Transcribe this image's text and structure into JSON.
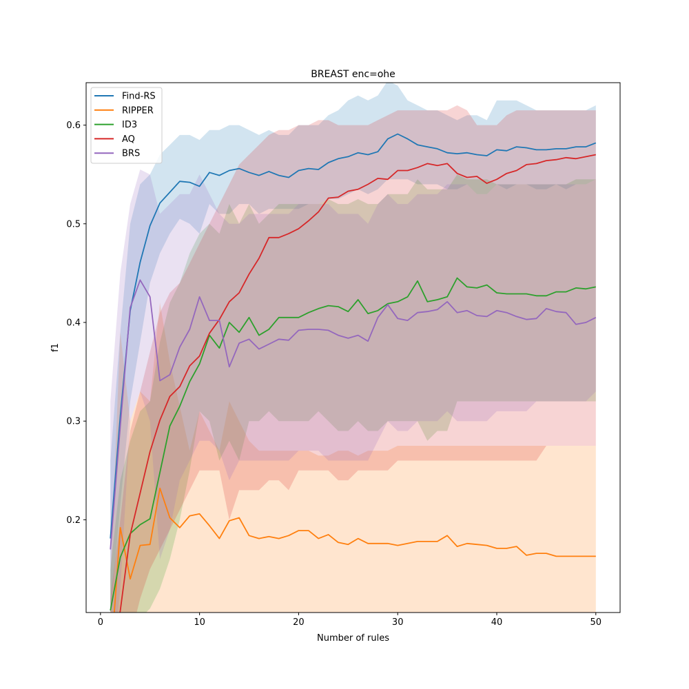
{
  "chart_data": {
    "type": "line",
    "title": "BREAST enc=ohe",
    "xlabel": "Number of rules",
    "ylabel": "f1",
    "xlim": [
      -1.45,
      52.45
    ],
    "ylim": [
      0.106,
      0.643
    ],
    "xticks": [
      0,
      10,
      20,
      30,
      40,
      50
    ],
    "yticks": [
      0.2,
      0.3,
      0.4,
      0.5,
      0.6
    ],
    "xtick_labels": [
      "0",
      "10",
      "20",
      "30",
      "40",
      "50"
    ],
    "ytick_labels": [
      "0.2",
      "0.3",
      "0.4",
      "0.5",
      "0.6"
    ],
    "grid": false,
    "legend_position": "top-left",
    "series": [
      {
        "name": "Find-RS",
        "color": "#1f77b4",
        "x": [
          1,
          2,
          3,
          4,
          5,
          6,
          7,
          8,
          9,
          10,
          11,
          12,
          13,
          14,
          15,
          16,
          17,
          18,
          19,
          20,
          21,
          22,
          23,
          24,
          25,
          26,
          27,
          28,
          29,
          30,
          31,
          32,
          33,
          34,
          35,
          36,
          37,
          38,
          39,
          40,
          41,
          42,
          43,
          44,
          45,
          46,
          47,
          48,
          49,
          50
        ],
        "y": [
          0.181,
          0.305,
          0.412,
          0.461,
          0.498,
          0.521,
          0.532,
          0.543,
          0.542,
          0.538,
          0.552,
          0.549,
          0.554,
          0.556,
          0.552,
          0.549,
          0.553,
          0.549,
          0.547,
          0.554,
          0.556,
          0.555,
          0.562,
          0.566,
          0.568,
          0.572,
          0.57,
          0.573,
          0.586,
          0.591,
          0.586,
          0.58,
          0.578,
          0.576,
          0.572,
          0.571,
          0.572,
          0.57,
          0.569,
          0.575,
          0.574,
          0.578,
          0.577,
          0.575,
          0.575,
          0.576,
          0.576,
          0.578,
          0.578,
          0.582
        ],
        "lower": [
          0.105,
          0.215,
          0.32,
          0.38,
          0.44,
          0.47,
          0.49,
          0.505,
          0.5,
          0.49,
          0.52,
          0.51,
          0.51,
          0.52,
          0.52,
          0.51,
          0.515,
          0.515,
          0.515,
          0.515,
          0.52,
          0.52,
          0.525,
          0.525,
          0.53,
          0.535,
          0.53,
          0.535,
          0.545,
          0.545,
          0.545,
          0.54,
          0.54,
          0.54,
          0.535,
          0.535,
          0.54,
          0.53,
          0.53,
          0.54,
          0.535,
          0.54,
          0.54,
          0.535,
          0.535,
          0.54,
          0.535,
          0.54,
          0.54,
          0.545
        ],
        "upper": [
          0.26,
          0.39,
          0.5,
          0.54,
          0.55,
          0.57,
          0.58,
          0.59,
          0.59,
          0.585,
          0.595,
          0.595,
          0.6,
          0.6,
          0.595,
          0.59,
          0.595,
          0.59,
          0.59,
          0.6,
          0.6,
          0.6,
          0.61,
          0.615,
          0.625,
          0.63,
          0.625,
          0.63,
          0.645,
          0.64,
          0.625,
          0.62,
          0.615,
          0.615,
          0.61,
          0.605,
          0.61,
          0.61,
          0.605,
          0.625,
          0.625,
          0.625,
          0.62,
          0.615,
          0.615,
          0.615,
          0.615,
          0.615,
          0.615,
          0.62
        ]
      },
      {
        "name": "RIPPER",
        "color": "#ff7f0e",
        "x": [
          1,
          2,
          3,
          4,
          5,
          6,
          7,
          8,
          9,
          10,
          11,
          12,
          13,
          14,
          15,
          16,
          17,
          18,
          19,
          20,
          21,
          22,
          23,
          24,
          25,
          26,
          27,
          28,
          29,
          30,
          31,
          32,
          33,
          34,
          35,
          36,
          37,
          38,
          39,
          40,
          41,
          42,
          43,
          44,
          45,
          46,
          47,
          48,
          49,
          50
        ],
        "y": [
          0.05,
          0.192,
          0.14,
          0.174,
          0.175,
          0.232,
          0.202,
          0.192,
          0.204,
          0.206,
          0.194,
          0.181,
          0.199,
          0.202,
          0.184,
          0.181,
          0.183,
          0.181,
          0.184,
          0.189,
          0.189,
          0.181,
          0.185,
          0.177,
          0.175,
          0.181,
          0.176,
          0.176,
          0.176,
          0.174,
          0.176,
          0.178,
          0.178,
          0.178,
          0.184,
          0.173,
          0.176,
          0.175,
          0.174,
          0.171,
          0.171,
          0.173,
          0.164,
          0.166,
          0.166,
          0.163,
          0.163,
          0.163,
          0.163,
          0.163
        ],
        "lower": [
          0.0,
          0.0,
          0.0,
          0.0,
          0.0,
          0.105,
          0.105,
          0.105,
          0.105,
          0.105,
          0.105,
          0.105,
          0.105,
          0.105,
          0.105,
          0.105,
          0.105,
          0.105,
          0.105,
          0.105,
          0.105,
          0.105,
          0.105,
          0.105,
          0.105,
          0.105,
          0.105,
          0.105,
          0.105,
          0.105,
          0.105,
          0.105,
          0.105,
          0.105,
          0.105,
          0.105,
          0.105,
          0.105,
          0.105,
          0.105,
          0.105,
          0.105,
          0.105,
          0.105,
          0.105,
          0.105,
          0.105,
          0.105,
          0.105,
          0.105
        ],
        "upper": [
          0.14,
          0.39,
          0.3,
          0.33,
          0.32,
          0.42,
          0.36,
          0.315,
          0.27,
          0.31,
          0.29,
          0.27,
          0.32,
          0.3,
          0.28,
          0.27,
          0.27,
          0.27,
          0.27,
          0.27,
          0.27,
          0.265,
          0.265,
          0.27,
          0.27,
          0.265,
          0.27,
          0.27,
          0.27,
          0.275,
          0.275,
          0.275,
          0.275,
          0.275,
          0.275,
          0.275,
          0.275,
          0.275,
          0.275,
          0.275,
          0.275,
          0.275,
          0.275,
          0.275,
          0.275,
          0.275,
          0.275,
          0.275,
          0.275,
          0.275
        ]
      },
      {
        "name": "ID3",
        "color": "#2ca02c",
        "x": [
          1,
          2,
          3,
          4,
          5,
          6,
          7,
          8,
          9,
          10,
          11,
          12,
          13,
          14,
          15,
          16,
          17,
          18,
          19,
          20,
          21,
          22,
          23,
          24,
          25,
          26,
          27,
          28,
          29,
          30,
          31,
          32,
          33,
          34,
          35,
          36,
          37,
          38,
          39,
          40,
          41,
          42,
          43,
          44,
          45,
          46,
          47,
          48,
          49,
          50
        ],
        "y": [
          0.108,
          0.162,
          0.186,
          0.195,
          0.201,
          0.248,
          0.295,
          0.315,
          0.34,
          0.358,
          0.387,
          0.374,
          0.4,
          0.39,
          0.405,
          0.387,
          0.393,
          0.405,
          0.405,
          0.405,
          0.41,
          0.414,
          0.417,
          0.416,
          0.411,
          0.423,
          0.409,
          0.412,
          0.419,
          0.421,
          0.426,
          0.442,
          0.421,
          0.423,
          0.426,
          0.445,
          0.436,
          0.435,
          0.438,
          0.43,
          0.429,
          0.429,
          0.429,
          0.427,
          0.427,
          0.431,
          0.431,
          0.435,
          0.434,
          0.436
        ],
        "lower": [
          0.06,
          0.09,
          0.1,
          0.1,
          0.11,
          0.13,
          0.16,
          0.2,
          0.25,
          0.31,
          0.3,
          0.26,
          0.28,
          0.26,
          0.3,
          0.3,
          0.31,
          0.3,
          0.3,
          0.3,
          0.3,
          0.31,
          0.3,
          0.29,
          0.29,
          0.3,
          0.29,
          0.29,
          0.3,
          0.3,
          0.3,
          0.3,
          0.28,
          0.29,
          0.29,
          0.32,
          0.32,
          0.32,
          0.32,
          0.32,
          0.32,
          0.32,
          0.32,
          0.32,
          0.32,
          0.32,
          0.32,
          0.32,
          0.32,
          0.32
        ],
        "upper": [
          0.15,
          0.24,
          0.28,
          0.31,
          0.32,
          0.38,
          0.42,
          0.44,
          0.47,
          0.49,
          0.5,
          0.49,
          0.52,
          0.5,
          0.52,
          0.5,
          0.51,
          0.52,
          0.52,
          0.52,
          0.52,
          0.52,
          0.525,
          0.52,
          0.52,
          0.525,
          0.52,
          0.52,
          0.53,
          0.53,
          0.53,
          0.545,
          0.535,
          0.535,
          0.535,
          0.55,
          0.545,
          0.545,
          0.545,
          0.54,
          0.54,
          0.54,
          0.54,
          0.54,
          0.54,
          0.54,
          0.54,
          0.545,
          0.545,
          0.545
        ]
      },
      {
        "name": "AQ",
        "color": "#d62728",
        "x": [
          1,
          2,
          3,
          4,
          5,
          6,
          7,
          8,
          9,
          10,
          11,
          12,
          13,
          14,
          15,
          16,
          17,
          18,
          19,
          20,
          21,
          22,
          23,
          24,
          25,
          26,
          27,
          28,
          29,
          30,
          31,
          32,
          33,
          34,
          35,
          36,
          37,
          38,
          39,
          40,
          41,
          42,
          43,
          44,
          45,
          46,
          47,
          48,
          49,
          50
        ],
        "y": [
          0.05,
          0.108,
          0.185,
          0.227,
          0.269,
          0.301,
          0.325,
          0.335,
          0.356,
          0.366,
          0.389,
          0.403,
          0.421,
          0.43,
          0.449,
          0.465,
          0.486,
          0.486,
          0.49,
          0.495,
          0.503,
          0.512,
          0.526,
          0.527,
          0.533,
          0.535,
          0.54,
          0.546,
          0.545,
          0.554,
          0.554,
          0.557,
          0.561,
          0.559,
          0.561,
          0.551,
          0.547,
          0.548,
          0.541,
          0.545,
          0.551,
          0.554,
          0.56,
          0.561,
          0.564,
          0.565,
          0.567,
          0.566,
          0.568,
          0.57
        ],
        "lower": [
          0.0,
          0.02,
          0.08,
          0.12,
          0.15,
          0.17,
          0.19,
          0.21,
          0.23,
          0.25,
          0.25,
          0.25,
          0.2,
          0.23,
          0.23,
          0.23,
          0.24,
          0.24,
          0.23,
          0.25,
          0.25,
          0.25,
          0.25,
          0.24,
          0.24,
          0.25,
          0.25,
          0.25,
          0.25,
          0.26,
          0.26,
          0.26,
          0.26,
          0.26,
          0.26,
          0.26,
          0.26,
          0.26,
          0.26,
          0.26,
          0.26,
          0.26,
          0.26,
          0.26,
          0.275,
          0.275,
          0.275,
          0.275,
          0.275,
          0.275
        ],
        "upper": [
          0.12,
          0.2,
          0.29,
          0.33,
          0.37,
          0.41,
          0.43,
          0.44,
          0.46,
          0.48,
          0.5,
          0.52,
          0.54,
          0.56,
          0.57,
          0.58,
          0.59,
          0.595,
          0.595,
          0.6,
          0.6,
          0.605,
          0.605,
          0.6,
          0.6,
          0.6,
          0.6,
          0.605,
          0.61,
          0.615,
          0.615,
          0.615,
          0.615,
          0.615,
          0.615,
          0.62,
          0.615,
          0.6,
          0.6,
          0.6,
          0.61,
          0.615,
          0.615,
          0.615,
          0.615,
          0.615,
          0.615,
          0.615,
          0.615,
          0.615
        ]
      },
      {
        "name": "BRS",
        "color": "#9467bd",
        "x": [
          1,
          2,
          3,
          4,
          5,
          6,
          7,
          8,
          9,
          10,
          11,
          12,
          13,
          14,
          15,
          16,
          17,
          18,
          19,
          20,
          21,
          22,
          23,
          24,
          25,
          26,
          27,
          28,
          29,
          30,
          31,
          32,
          33,
          34,
          35,
          36,
          37,
          38,
          39,
          40,
          41,
          42,
          43,
          44,
          45,
          46,
          47,
          48,
          49,
          50
        ],
        "y": [
          0.17,
          0.295,
          0.415,
          0.443,
          0.426,
          0.341,
          0.347,
          0.375,
          0.393,
          0.426,
          0.402,
          0.402,
          0.355,
          0.379,
          0.383,
          0.373,
          0.378,
          0.383,
          0.382,
          0.392,
          0.393,
          0.393,
          0.392,
          0.387,
          0.384,
          0.387,
          0.381,
          0.405,
          0.418,
          0.404,
          0.402,
          0.41,
          0.411,
          0.413,
          0.421,
          0.41,
          0.412,
          0.407,
          0.406,
          0.412,
          0.41,
          0.406,
          0.403,
          0.404,
          0.414,
          0.411,
          0.41,
          0.398,
          0.4,
          0.405
        ],
        "lower": [
          0.03,
          0.13,
          0.3,
          0.33,
          0.3,
          0.16,
          0.19,
          0.24,
          0.26,
          0.28,
          0.28,
          0.27,
          0.24,
          0.26,
          0.26,
          0.26,
          0.26,
          0.26,
          0.26,
          0.27,
          0.27,
          0.27,
          0.26,
          0.26,
          0.26,
          0.26,
          0.26,
          0.28,
          0.3,
          0.29,
          0.29,
          0.3,
          0.3,
          0.3,
          0.31,
          0.3,
          0.3,
          0.3,
          0.3,
          0.31,
          0.31,
          0.31,
          0.31,
          0.32,
          0.32,
          0.32,
          0.32,
          0.32,
          0.32,
          0.33
        ],
        "upper": [
          0.32,
          0.45,
          0.52,
          0.555,
          0.55,
          0.51,
          0.52,
          0.53,
          0.53,
          0.55,
          0.53,
          0.51,
          0.5,
          0.5,
          0.51,
          0.51,
          0.51,
          0.51,
          0.51,
          0.52,
          0.52,
          0.52,
          0.52,
          0.51,
          0.51,
          0.51,
          0.5,
          0.52,
          0.53,
          0.52,
          0.52,
          0.53,
          0.53,
          0.53,
          0.54,
          0.54,
          0.54,
          0.53,
          0.53,
          0.54,
          0.54,
          0.54,
          0.54,
          0.54,
          0.54,
          0.54,
          0.54,
          0.54,
          0.54,
          0.545
        ]
      }
    ]
  }
}
